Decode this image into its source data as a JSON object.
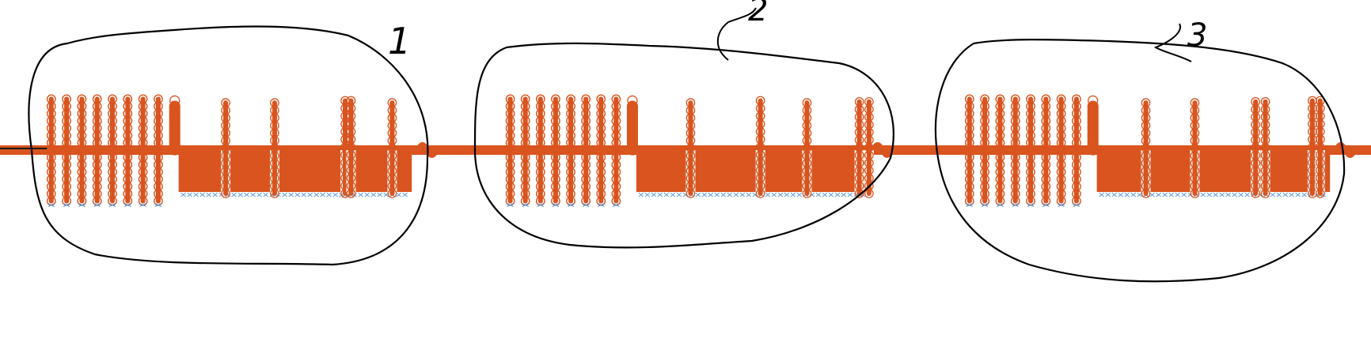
{
  "colors": {
    "background": "#ffffff",
    "signal": "#d9541e",
    "secondary_marker": "#4a90d9",
    "annotation_ink": "#000000"
  },
  "annotations": [
    {
      "label": "1",
      "group": 1
    },
    {
      "label": "2",
      "group": 2
    },
    {
      "label": "3",
      "group": 3
    }
  ],
  "chart_data": {
    "type": "line",
    "title": "",
    "xlabel": "",
    "ylabel": "",
    "grid": false,
    "legend": "none",
    "markers": "circle",
    "ylim": [
      -1,
      1
    ],
    "baseline": 0,
    "groups": [
      {
        "name": "1",
        "xlim": [
          0,
          100
        ],
        "dense_pulses": [
          {
            "x": 4.0,
            "high": 0.95,
            "low": -0.95
          },
          {
            "x": 7.9,
            "high": 0.95,
            "low": -0.95
          },
          {
            "x": 11.8,
            "high": 0.95,
            "low": -0.95
          },
          {
            "x": 15.7,
            "high": 0.95,
            "low": -0.95
          },
          {
            "x": 19.6,
            "high": 0.95,
            "low": -0.95
          },
          {
            "x": 23.5,
            "high": 0.95,
            "low": -0.95
          },
          {
            "x": 27.4,
            "high": 0.95,
            "low": -0.95
          },
          {
            "x": 31.3,
            "high": 0.95,
            "low": -0.95
          }
        ],
        "wide_pulse": {
          "x": 35.5,
          "high": 0.92
        },
        "block_span": [
          36.5,
          96.0
        ],
        "block_low": -0.78,
        "gap_pulses": [
          {
            "x": 48.5,
            "high": 0.88
          },
          {
            "x": 61.0,
            "high": 0.88
          },
          {
            "x": 79.0,
            "high": 0.92
          },
          {
            "x": 80.5,
            "high": 0.92
          },
          {
            "x": 91.0,
            "high": 0.88
          }
        ]
      },
      {
        "name": "2",
        "xlim": [
          0,
          100
        ],
        "dense_pulses": [
          {
            "x": 4.0,
            "high": 0.95,
            "low": -0.95
          },
          {
            "x": 7.9,
            "high": 0.95,
            "low": -0.95
          },
          {
            "x": 11.8,
            "high": 0.95,
            "low": -0.95
          },
          {
            "x": 15.7,
            "high": 0.95,
            "low": -0.95
          },
          {
            "x": 19.6,
            "high": 0.95,
            "low": -0.95
          },
          {
            "x": 23.5,
            "high": 0.95,
            "low": -0.95
          },
          {
            "x": 27.4,
            "high": 0.95,
            "low": -0.95
          },
          {
            "x": 31.3,
            "high": 0.95,
            "low": -0.95
          }
        ],
        "wide_pulse": {
          "x": 35.5,
          "high": 0.92
        },
        "block_span": [
          36.5,
          96.0
        ],
        "block_low": -0.78,
        "gap_pulses": [
          {
            "x": 50.5,
            "high": 0.88
          },
          {
            "x": 68.5,
            "high": 0.92
          },
          {
            "x": 80.5,
            "high": 0.88
          },
          {
            "x": 94.0,
            "high": 0.9
          },
          {
            "x": 96.5,
            "high": 0.9
          }
        ]
      },
      {
        "name": "3",
        "xlim": [
          0,
          100
        ],
        "dense_pulses": [
          {
            "x": 4.0,
            "high": 0.95,
            "low": -0.95
          },
          {
            "x": 7.9,
            "high": 0.95,
            "low": -0.95
          },
          {
            "x": 11.8,
            "high": 0.95,
            "low": -0.95
          },
          {
            "x": 15.7,
            "high": 0.95,
            "low": -0.95
          },
          {
            "x": 19.6,
            "high": 0.95,
            "low": -0.95
          },
          {
            "x": 23.5,
            "high": 0.95,
            "low": -0.95
          },
          {
            "x": 27.4,
            "high": 0.95,
            "low": -0.95
          },
          {
            "x": 31.3,
            "high": 0.95,
            "low": -0.95
          }
        ],
        "wide_pulse": {
          "x": 35.5,
          "high": 0.92
        },
        "block_span": [
          36.5,
          96.0
        ],
        "block_low": -0.78,
        "gap_pulses": [
          {
            "x": 49.0,
            "high": 0.88
          },
          {
            "x": 61.5,
            "high": 0.88
          },
          {
            "x": 77.0,
            "high": 0.9
          },
          {
            "x": 79.5,
            "high": 0.9
          },
          {
            "x": 91.5,
            "high": 0.92
          },
          {
            "x": 93.5,
            "high": 0.92
          }
        ]
      }
    ]
  }
}
